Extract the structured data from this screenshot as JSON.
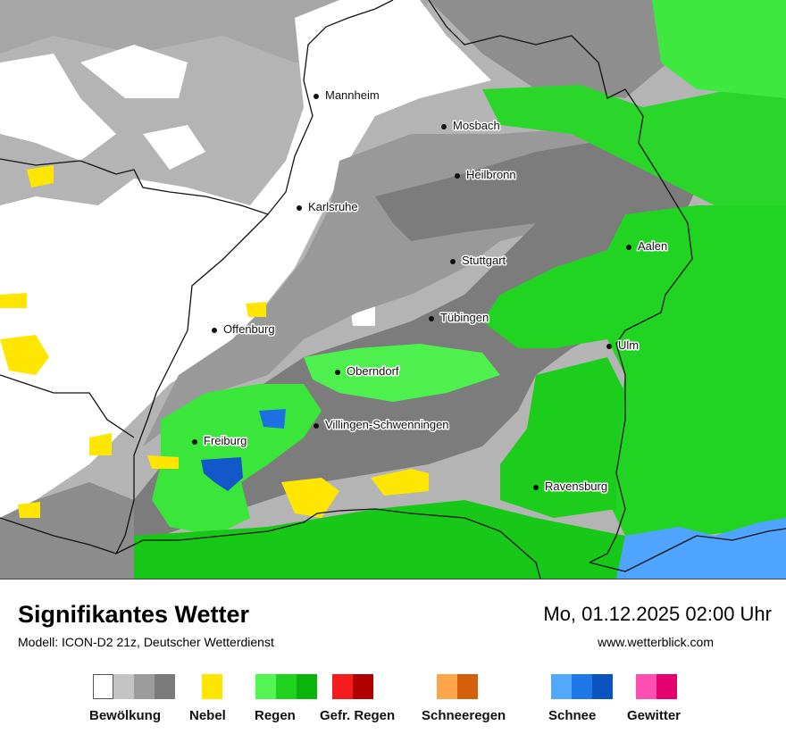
{
  "map": {
    "cities": [
      {
        "name": "Mannheim"
      },
      {
        "name": "Mosbach"
      },
      {
        "name": "Heilbronn"
      },
      {
        "name": "Karlsruhe"
      },
      {
        "name": "Stuttgart"
      },
      {
        "name": "Aalen"
      },
      {
        "name": "Offenburg"
      },
      {
        "name": "Tübingen"
      },
      {
        "name": "Ulm"
      },
      {
        "name": "Oberndorf"
      },
      {
        "name": "Villingen-Schwenningen"
      },
      {
        "name": "Freiburg"
      },
      {
        "name": "Ravensburg"
      }
    ]
  },
  "footer": {
    "title": "Signifikantes Wetter",
    "subtitle": "Modell: ICON-D2 21z, Deutscher Wetterdienst",
    "datetime": "Mo, 01.12.2025 02:00 Uhr",
    "website": "www.wetterblick.com"
  },
  "legend": [
    {
      "label": "Bewölkung",
      "colors": [
        "#ffffff",
        "#c4c4c4",
        "#9c9c9c",
        "#7a7a7a"
      ]
    },
    {
      "label": "Nebel",
      "colors": [
        "#ffe600"
      ]
    },
    {
      "label": "Regen",
      "colors": [
        "#52f552",
        "#1ed21e",
        "#0ab40a"
      ]
    },
    {
      "label": "Gefr. Regen",
      "colors": [
        "#f41c1c",
        "#b00000"
      ]
    },
    {
      "label": "Schneeregen",
      "colors": [
        "#ffa64d",
        "#d4600a"
      ]
    },
    {
      "label": "Schnee",
      "colors": [
        "#52a8ff",
        "#1e78e8",
        "#0a54c0"
      ]
    },
    {
      "label": "Gewitter",
      "colors": [
        "#ff4fb0",
        "#e6006e"
      ]
    }
  ]
}
